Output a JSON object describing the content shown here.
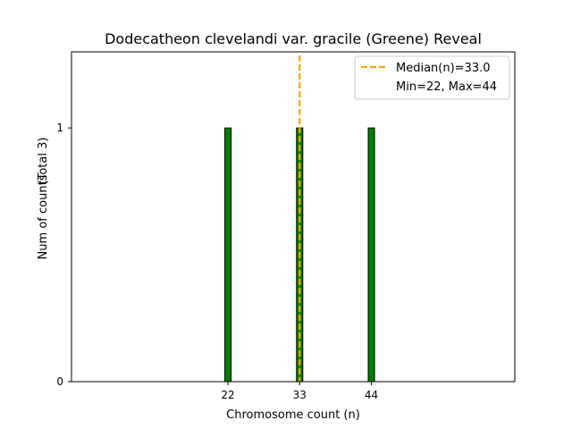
{
  "chart_data": {
    "type": "bar",
    "title": "Dodecatheon clevelandi var. gracile (Greene) Reveal",
    "xlabel": "Chromosome count (n)",
    "ylabel": "Num of counts",
    "ylabel_note": "(Total 3)",
    "x": [
      22,
      33,
      44
    ],
    "values": [
      1,
      1,
      1
    ],
    "xlim": [
      -2,
      66
    ],
    "ylim": [
      0,
      1.3
    ],
    "xticks": [
      "22",
      "33",
      "44"
    ],
    "yticks": [
      "0",
      "1"
    ],
    "bar_color": "#008000",
    "median": {
      "value": 33.0,
      "color": "#FFA500",
      "style": "dashed"
    },
    "legend": {
      "position": "top-right",
      "entries": [
        "Median(n)=33.0",
        "Min=22, Max=44"
      ]
    },
    "grid": false
  }
}
